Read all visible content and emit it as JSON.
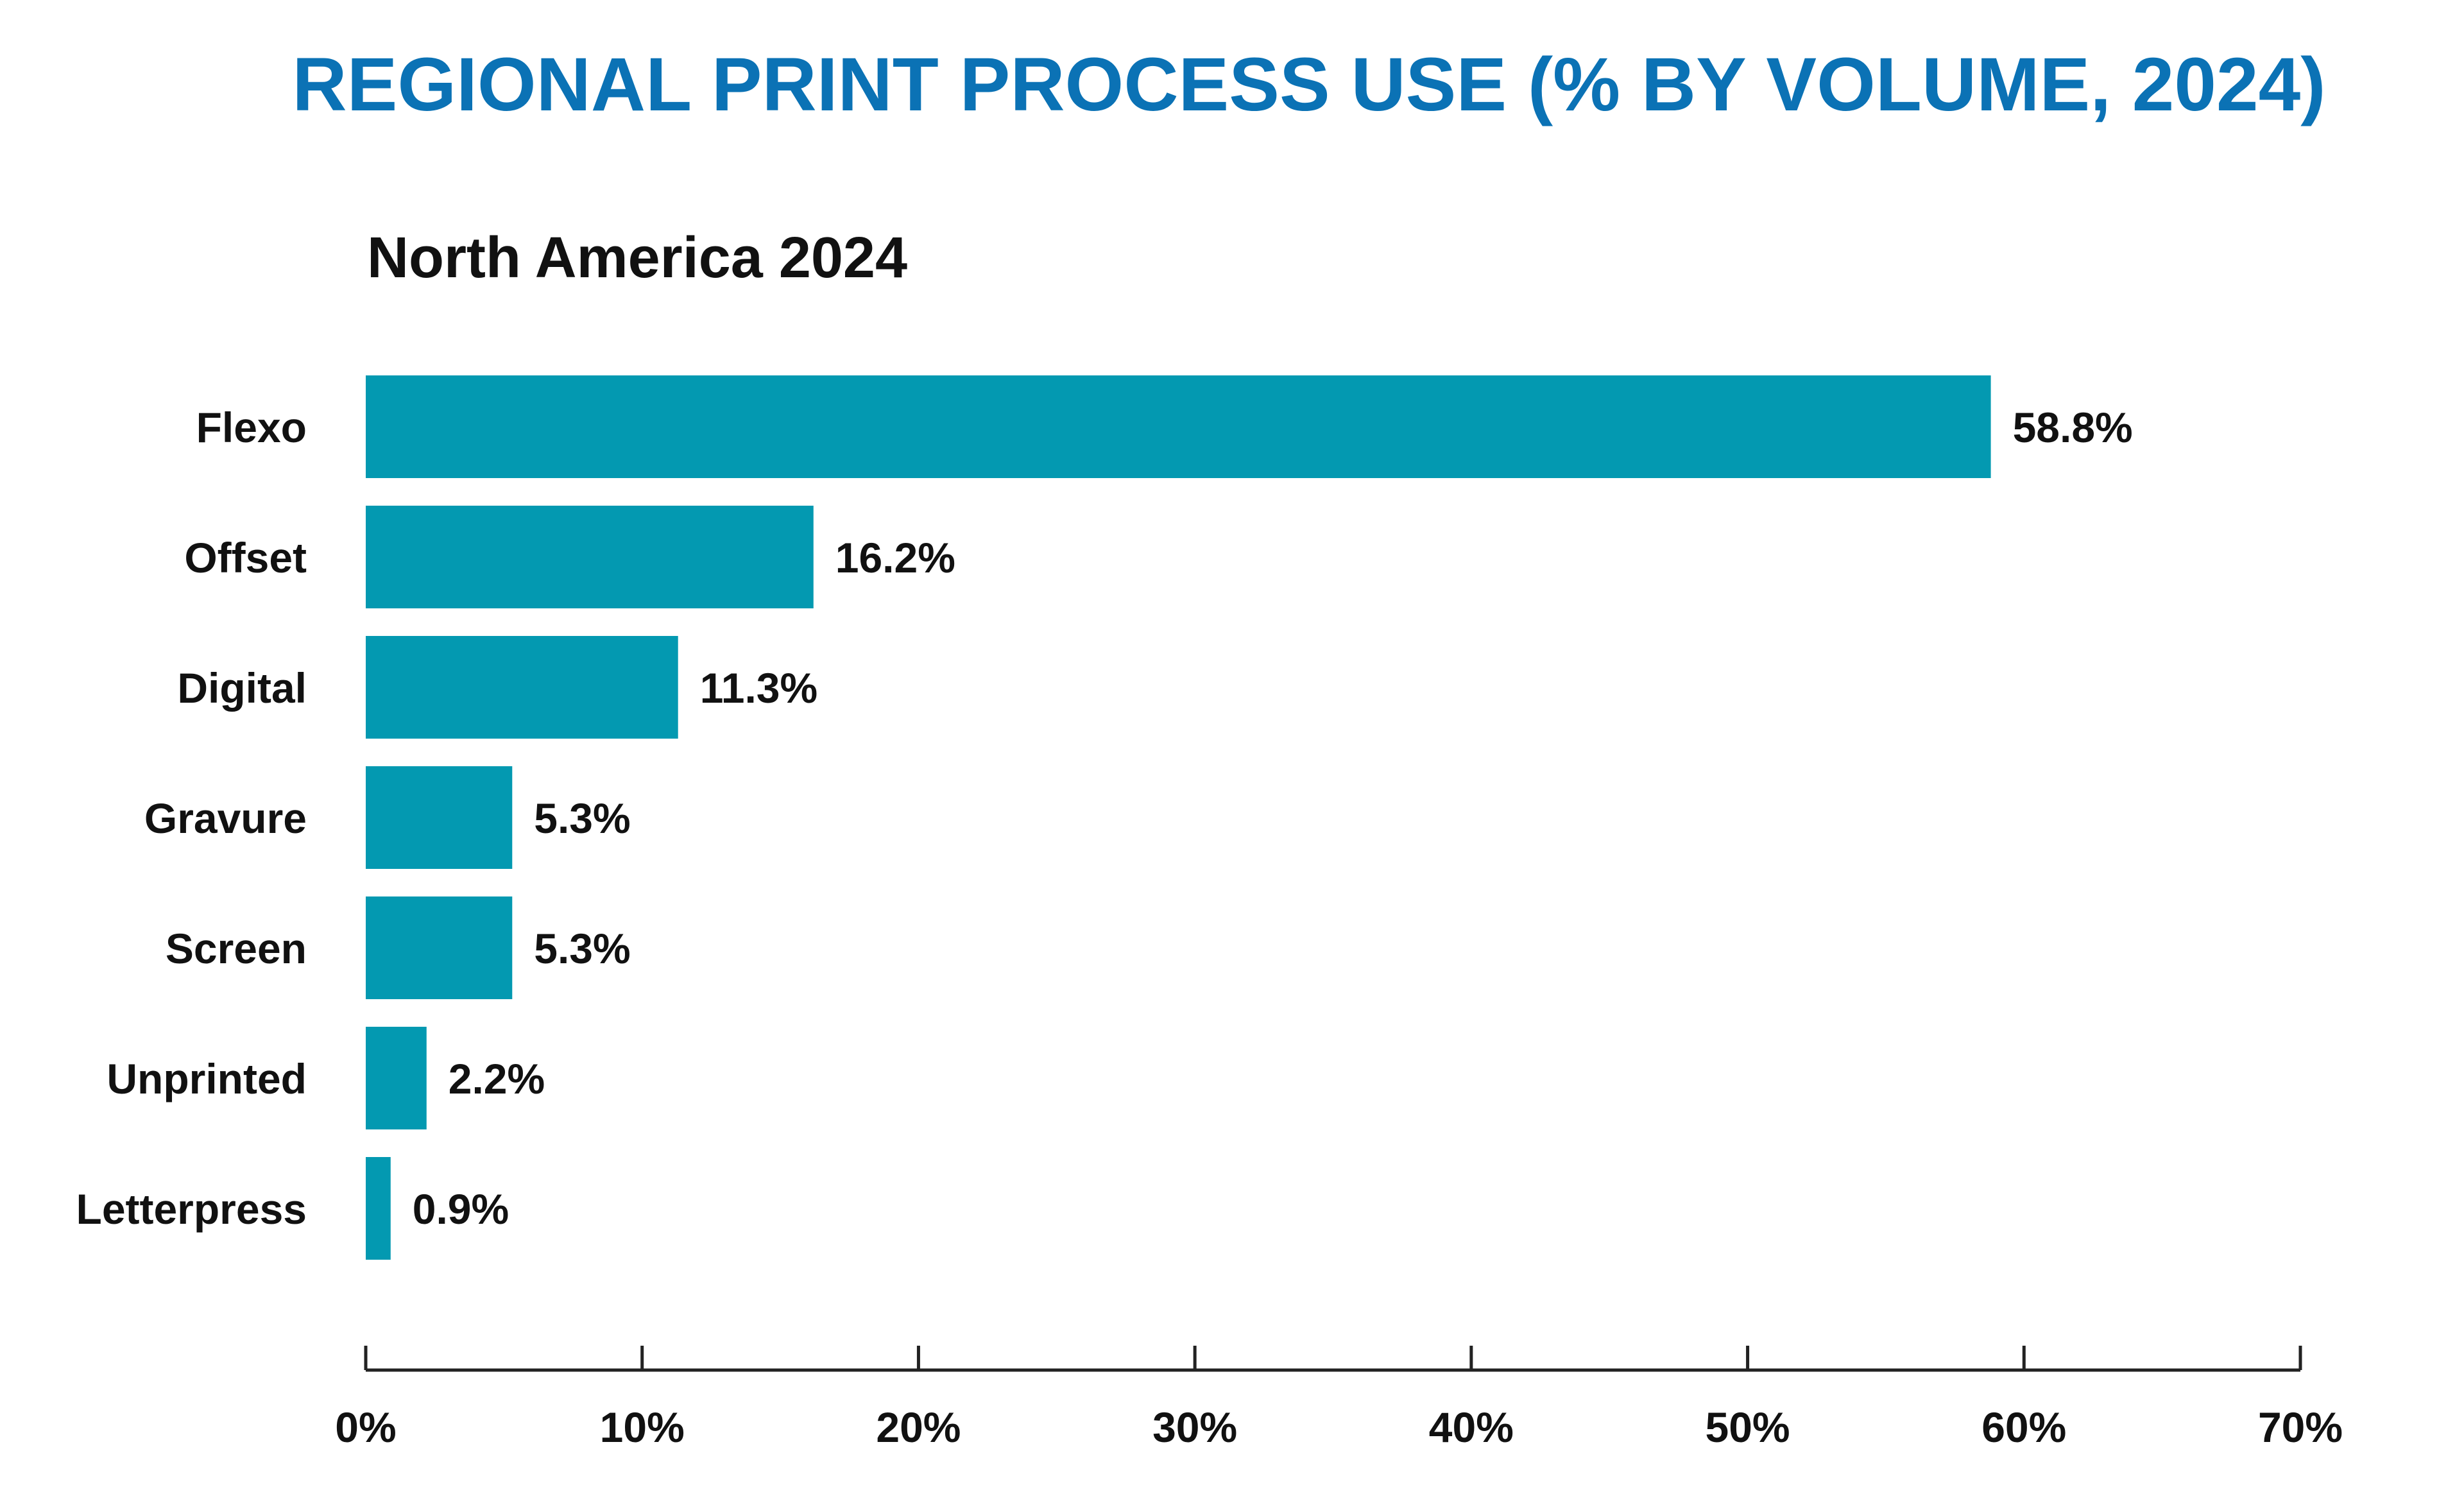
{
  "colors": {
    "title": "#0b72b5",
    "bar": "#0399b1",
    "text": "#111111",
    "axis": "#222222"
  },
  "chart_data": {
    "type": "bar",
    "orientation": "horizontal",
    "title": "REGIONAL PRINT PROCESS USE (% BY VOLUME, 2024)",
    "subtitle": "North America 2024",
    "categories": [
      "Flexo",
      "Offset",
      "Digital",
      "Gravure",
      "Screen",
      "Unprinted",
      "Letterpress"
    ],
    "values": [
      58.8,
      16.2,
      11.3,
      5.3,
      5.3,
      2.2,
      0.9
    ],
    "value_labels": [
      "58.8%",
      "16.2%",
      "11.3%",
      "5.3%",
      "5.3%",
      "2.2%",
      "0.9%"
    ],
    "xlabel": "",
    "ylabel": "",
    "xlim": [
      0,
      70
    ],
    "ticks": [
      0,
      10,
      20,
      30,
      40,
      50,
      60,
      70
    ],
    "tick_labels": [
      "0%",
      "10%",
      "20%",
      "30%",
      "40%",
      "50%",
      "60%",
      "70%"
    ],
    "grid": false,
    "legend": "none"
  }
}
